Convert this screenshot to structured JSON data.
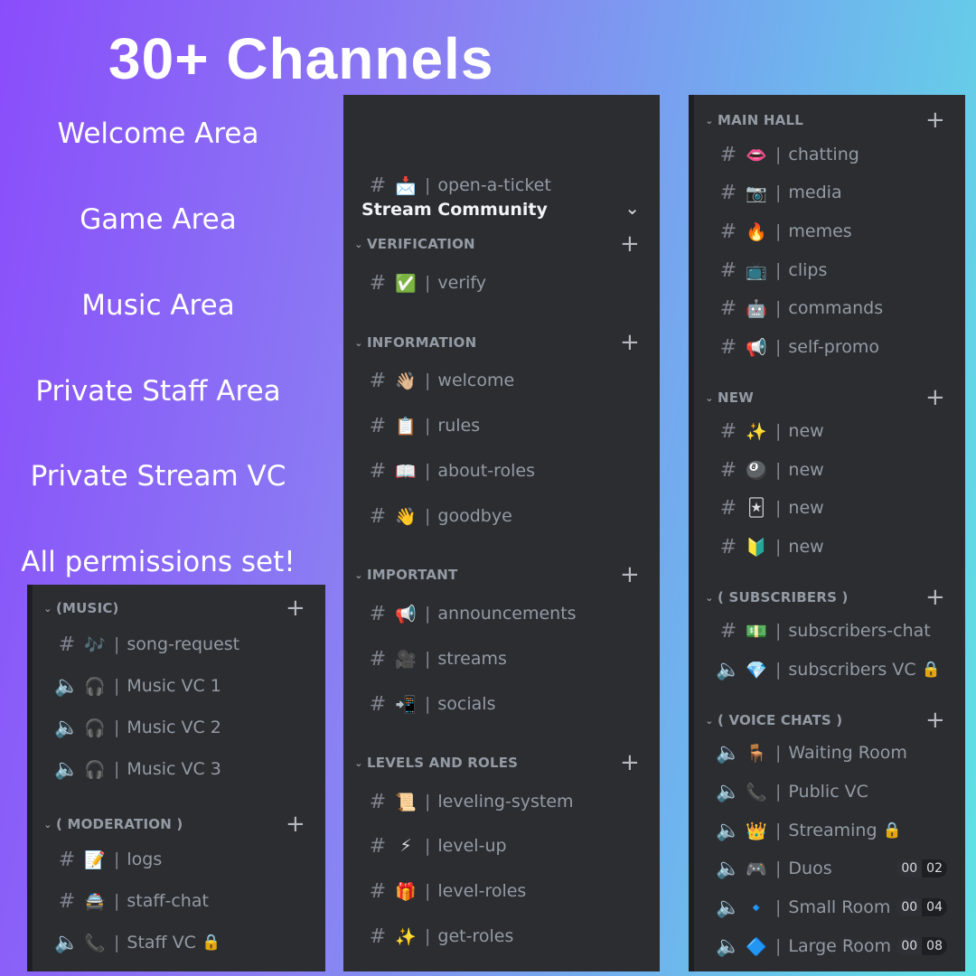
{
  "title": "30+ Channels",
  "features": [
    "Welcome Area",
    "Game Area",
    "Music Area",
    "Private Staff Area",
    "Private Stream VC",
    "All permissions set!"
  ],
  "colors": {
    "panel": "#2b2d31",
    "text": "#949ba4",
    "lock": "#f0b232"
  },
  "panels": {
    "left": {
      "rows": [
        {
          "kind": "category",
          "label": "(MUSIC)"
        },
        {
          "kind": "text",
          "emoji": "🎶",
          "name": "song-request"
        },
        {
          "kind": "voice",
          "emoji": "🎧",
          "name": "Music VC 1"
        },
        {
          "kind": "voice",
          "emoji": "🎧",
          "name": "Music VC 2"
        },
        {
          "kind": "voice",
          "emoji": "🎧",
          "name": "Music VC 3"
        },
        {
          "kind": "category",
          "label": "( MODERATION )"
        },
        {
          "kind": "text",
          "emoji": "📝",
          "name": "logs"
        },
        {
          "kind": "text",
          "emoji": "🚔",
          "name": "staff-chat"
        },
        {
          "kind": "voice",
          "emoji": "📞",
          "name": "Staff VC",
          "locked": true
        }
      ]
    },
    "middle": {
      "server_name": "Stream Community",
      "rows": [
        {
          "kind": "text",
          "emoji": "📩",
          "name": "open-a-ticket"
        },
        {
          "kind": "category",
          "label": "VERIFICATION"
        },
        {
          "kind": "text",
          "emoji": "✅",
          "name": "verify"
        },
        {
          "kind": "category",
          "label": "INFORMATION"
        },
        {
          "kind": "text",
          "emoji": "👋🏼",
          "name": "welcome"
        },
        {
          "kind": "text",
          "emoji": "📋",
          "name": "rules"
        },
        {
          "kind": "text",
          "emoji": "📖",
          "name": "about-roles"
        },
        {
          "kind": "text",
          "emoji": "👋",
          "name": "goodbye"
        },
        {
          "kind": "category",
          "label": "IMPORTANT"
        },
        {
          "kind": "text",
          "emoji": "📢",
          "name": "announcements"
        },
        {
          "kind": "text",
          "emoji": "🎥",
          "name": "streams"
        },
        {
          "kind": "text",
          "emoji": "📲",
          "name": "socials"
        },
        {
          "kind": "category",
          "label": "LEVELS AND ROLES"
        },
        {
          "kind": "text",
          "emoji": "📜",
          "name": "leveling-system"
        },
        {
          "kind": "text",
          "emoji": "⚡",
          "name": "level-up"
        },
        {
          "kind": "text",
          "emoji": "🎁",
          "name": "level-roles"
        },
        {
          "kind": "text",
          "emoji": "✨",
          "name": "get-roles"
        }
      ]
    },
    "right": {
      "rows": [
        {
          "kind": "category",
          "label": "MAIN HALL"
        },
        {
          "kind": "text",
          "emoji": "👄",
          "name": "chatting"
        },
        {
          "kind": "text",
          "emoji": "📷",
          "name": "media"
        },
        {
          "kind": "text",
          "emoji": "🔥",
          "name": "memes"
        },
        {
          "kind": "text",
          "emoji": "📺",
          "name": "clips"
        },
        {
          "kind": "text",
          "emoji": "🤖",
          "name": "commands"
        },
        {
          "kind": "text",
          "emoji": "📢",
          "name": "self-promo"
        },
        {
          "kind": "category",
          "label": "NEW"
        },
        {
          "kind": "text",
          "emoji": "✨",
          "name": "new"
        },
        {
          "kind": "text",
          "emoji": "🎱",
          "name": "new"
        },
        {
          "kind": "text",
          "emoji": "🃏",
          "name": "new"
        },
        {
          "kind": "text",
          "emoji": "🔰",
          "name": "new"
        },
        {
          "kind": "category",
          "label": "( SUBSCRIBERS )"
        },
        {
          "kind": "text",
          "emoji": "💵",
          "name": "subscribers-chat"
        },
        {
          "kind": "voice",
          "emoji": "💎",
          "name": "subscribers VC",
          "locked": true
        },
        {
          "kind": "category",
          "label": "( VOICE CHATS )"
        },
        {
          "kind": "voice",
          "emoji": "🪑",
          "name": "Waiting Room"
        },
        {
          "kind": "voice",
          "emoji": "📞",
          "name": "Public VC"
        },
        {
          "kind": "voice",
          "emoji": "👑",
          "name": "Streaming",
          "locked": true
        },
        {
          "kind": "voice",
          "emoji": "🎮",
          "name": "Duos",
          "users": "00",
          "limit": "02"
        },
        {
          "kind": "voice",
          "emoji": "🔹",
          "name": "Small Room",
          "users": "00",
          "limit": "04"
        },
        {
          "kind": "voice",
          "emoji": "🔷",
          "name": "Large Room",
          "users": "00",
          "limit": "08"
        }
      ]
    }
  },
  "icons": {
    "text": "hash-lock-icon",
    "voice": "speaker-lock-icon",
    "lock": "lock-icon",
    "plus": "plus-icon",
    "chevron": "chevron-down-icon"
  }
}
